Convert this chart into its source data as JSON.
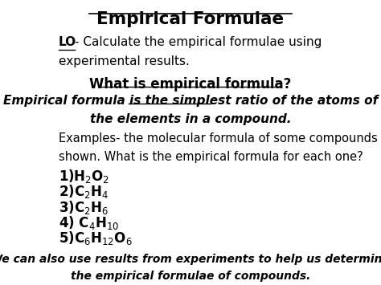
{
  "bg_color": "#ffffff",
  "text_color": "#000000",
  "figsize": [
    4.74,
    3.55
  ],
  "dpi": 100,
  "title": "Empirical Formulae",
  "title_underline": [
    0.13,
    0.87,
    0.955
  ],
  "lo_text": "- Calculate the empirical formulae using",
  "lo_line2": "experimental results.",
  "section_title": "What is empirical formula?",
  "section_title_underline": [
    0.17,
    0.83,
    0.695
  ],
  "def_line1": "Empirical formula is the simplest ratio of the atoms of",
  "def_line2": "the elements in a compound.",
  "simplest_ratio_underline": [
    0.275,
    0.575,
    0.635
  ],
  "ex_line1": "Examples- the molecular formula of some compounds are",
  "ex_line2": "shown. What is the empirical formula for each one?",
  "formulas": [
    "1)H$_2$O$_2$",
    "2)C$_2$H$_4$",
    "3)C$_2$H$_6$",
    "4) C$_4$H$_{10}$",
    "5)C$_6$H$_{12}$O$_6$"
  ],
  "bottom_line1": "We can also use results from experiments to help us determine",
  "bottom_line2": "the empirical formulae of compounds."
}
